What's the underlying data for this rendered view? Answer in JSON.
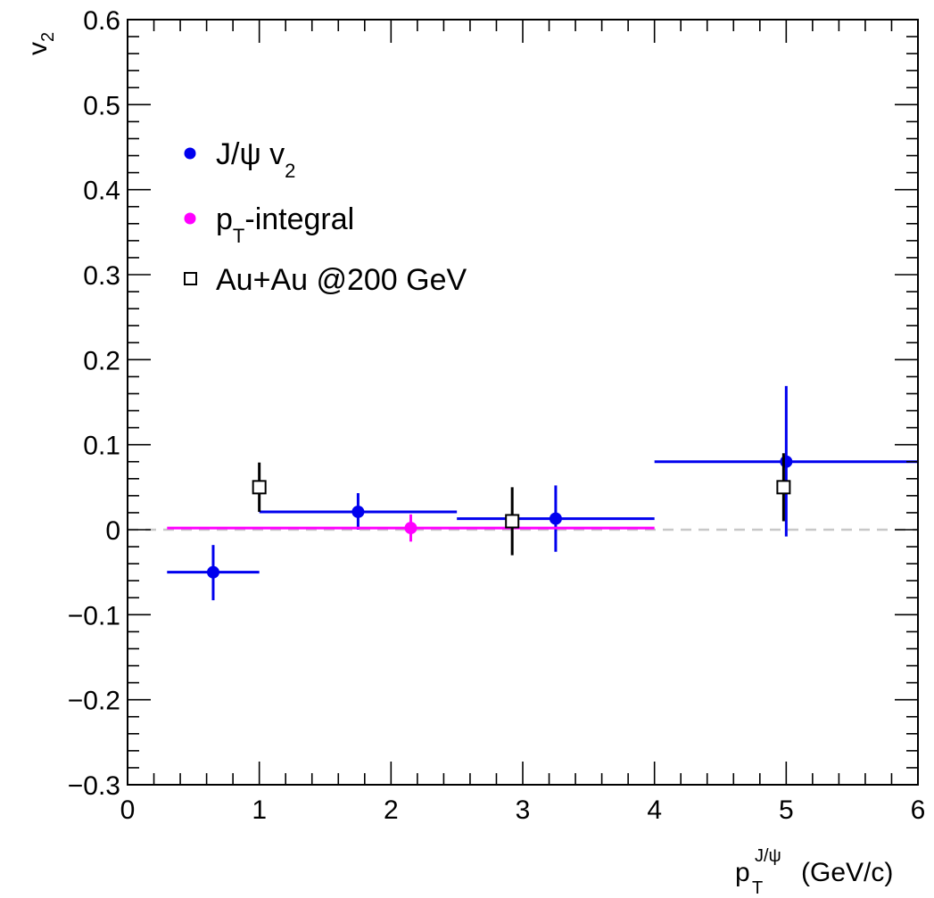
{
  "chart_data": {
    "type": "scatter",
    "title": "",
    "xlabel": {
      "base": "p",
      "sub": "T",
      "sup": "J/ψ",
      "unit": "(GeV/c)"
    },
    "ylabel": {
      "base": "v",
      "sub": "2"
    },
    "xlim": [
      0,
      6
    ],
    "ylim": [
      -0.3,
      0.6
    ],
    "x_ticks": [
      0,
      1,
      2,
      3,
      4,
      5,
      6
    ],
    "x_tick_labels": [
      "0",
      "1",
      "2",
      "3",
      "4",
      "5",
      "6"
    ],
    "y_ticks": [
      -0.3,
      -0.2,
      -0.1,
      0,
      0.1,
      0.2,
      0.3,
      0.4,
      0.5,
      0.6
    ],
    "y_tick_labels": [
      "−0.3",
      "−0.2",
      "−0.1",
      "0",
      "0.1",
      "0.2",
      "0.3",
      "0.4",
      "0.5",
      "0.6"
    ],
    "reference_line": {
      "y": 0,
      "style": "dashed",
      "color": "#c8c8c8"
    },
    "grid": false,
    "legend_position": "top-left",
    "series": [
      {
        "name": "J/ψ v",
        "name_sub": "2",
        "marker": "filled-circle",
        "color": "#0000ee",
        "points": [
          {
            "x": 0.65,
            "y": -0.05,
            "xlo": 0.3,
            "xhi": 1.0,
            "ylo": -0.083,
            "yhi": -0.018
          },
          {
            "x": 1.75,
            "y": 0.021,
            "xlo": 1.0,
            "xhi": 2.5,
            "ylo": 0.0,
            "yhi": 0.043
          },
          {
            "x": 3.25,
            "y": 0.013,
            "xlo": 2.5,
            "xhi": 4.0,
            "ylo": -0.026,
            "yhi": 0.052
          },
          {
            "x": 5.0,
            "y": 0.08,
            "xlo": 4.0,
            "xhi": 6.0,
            "ylo": -0.008,
            "yhi": 0.169
          }
        ]
      },
      {
        "name": "p",
        "name_sub": "T",
        "name_suffix": "-integral",
        "marker": "filled-circle",
        "color": "#ff00ff",
        "points": [
          {
            "x": 2.15,
            "y": 0.002,
            "xlo": 0.3,
            "xhi": 4.0,
            "ylo": -0.014,
            "yhi": 0.018
          }
        ]
      },
      {
        "name": "Au+Au @200 GeV",
        "marker": "open-square",
        "color": "#000000",
        "points": [
          {
            "x": 1.0,
            "y": 0.05,
            "ylo": 0.021,
            "yhi": 0.079
          },
          {
            "x": 2.92,
            "y": 0.01,
            "ylo": -0.03,
            "yhi": 0.05
          },
          {
            "x": 4.98,
            "y": 0.05,
            "ylo": 0.01,
            "yhi": 0.09
          }
        ]
      }
    ]
  }
}
